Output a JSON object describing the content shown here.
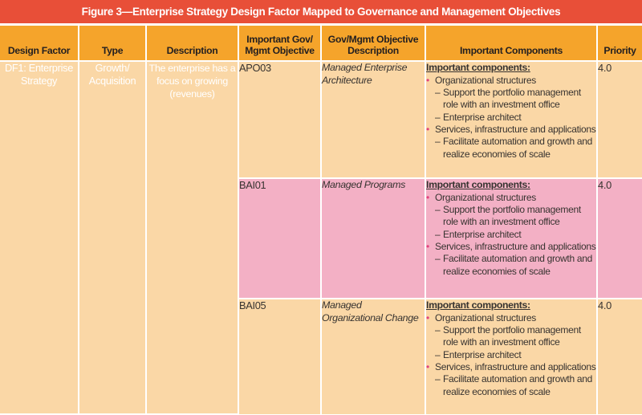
{
  "colors": {
    "title_bar_bg": "#e84f38",
    "header_bg": "#f5a42b",
    "df_col_bg": "#e9552f",
    "type_col_bg": "#f29272",
    "desc_col_bg": "#f3ab91",
    "row_peach_bg": "#fad7a6",
    "row_pink_bg": "#f3b0c5",
    "bullet": "#e2417d",
    "text_dark": "#373330",
    "text_light": "#ffffff"
  },
  "title_bar": {
    "text": "Figure 3—Enterprise Strategy Design Factor Mapped to Governance and Management Objectives"
  },
  "table": {
    "markers": {
      "bullet": "•",
      "dash": "–"
    },
    "headers": [
      "Design Factor",
      "Type",
      "Description",
      "Important Gov/ Mgmt Objective",
      "Gov/Mgmt Objective Description",
      "Important Components",
      "Priority"
    ],
    "design_factor": {
      "name": "DF1: Enterprise Strategy",
      "type": "Growth/ Acquisition",
      "description": "The enterprise has a focus on growing (revenues)"
    },
    "rows": [
      {
        "objective": "APO03",
        "objective_description": "Managed Enterprise Architecture",
        "components_heading": "Important components:",
        "components": [
          {
            "label": "Organizational structures",
            "sub_items": [
              "Support the portfolio management role with an investment office",
              "Enterprise architect"
            ]
          },
          {
            "label": "Services, infrastructure and applications",
            "sub_items": [
              "Facilitate automation and growth and realize economies of scale"
            ]
          }
        ],
        "priority": "4.0"
      },
      {
        "objective": "BAI01",
        "objective_description": "Managed Programs",
        "components_heading": "Important components:",
        "components": [
          {
            "label": "Organizational structures",
            "sub_items": [
              "Support the portfolio management role with an investment office",
              "Enterprise architect"
            ]
          },
          {
            "label": "Services, infrastructure and applications",
            "sub_items": [
              "Facilitate automation and growth and realize economies of scale"
            ]
          }
        ],
        "priority": "4.0"
      },
      {
        "objective": "BAI05",
        "objective_description": "Managed Organizational Change",
        "components_heading": "Important components:",
        "components": [
          {
            "label": "Organizational structures",
            "sub_items": [
              "Support the portfolio management role with an investment office",
              "Enterprise architect"
            ]
          },
          {
            "label": "Services, infrastructure and applications",
            "sub_items": [
              "Facilitate automation and growth and realize economies of scale"
            ]
          }
        ],
        "priority": "4.0"
      }
    ]
  }
}
